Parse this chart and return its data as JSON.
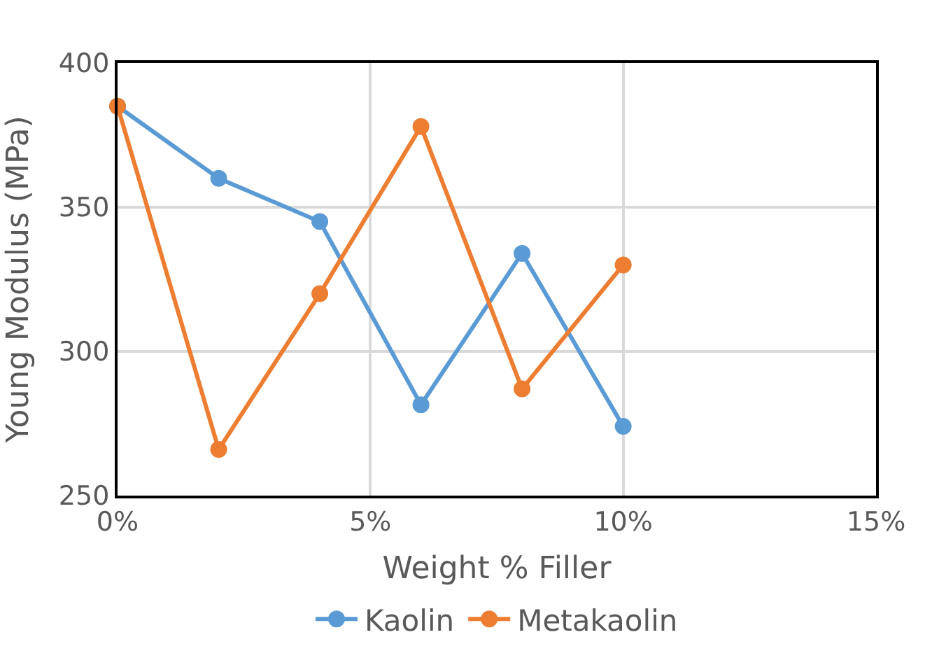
{
  "chart_data": {
    "type": "line",
    "xlabel": "Weight % Filler",
    "ylabel": "Young Modulus (MPa)",
    "x": [
      0,
      2,
      4,
      6,
      8,
      10
    ],
    "series": [
      {
        "name": "Kaolin",
        "color": "#5b9bd5",
        "values": [
          385,
          360,
          345,
          281.5,
          334,
          274
        ]
      },
      {
        "name": "Metakaolin",
        "color": "#ed7d31",
        "values": [
          385,
          266,
          320,
          378,
          287,
          330
        ]
      }
    ],
    "xlim": [
      0,
      15
    ],
    "xticks": [
      {
        "value": 0,
        "label": "0%"
      },
      {
        "value": 5,
        "label": "5%"
      },
      {
        "value": 10,
        "label": "10%"
      },
      {
        "value": 15,
        "label": "15%"
      }
    ],
    "ylim": [
      250,
      400
    ],
    "yticks": [
      250,
      300,
      350,
      400
    ],
    "grid": true,
    "legend": "bottom",
    "marker": "circle",
    "line_style": "solid"
  }
}
